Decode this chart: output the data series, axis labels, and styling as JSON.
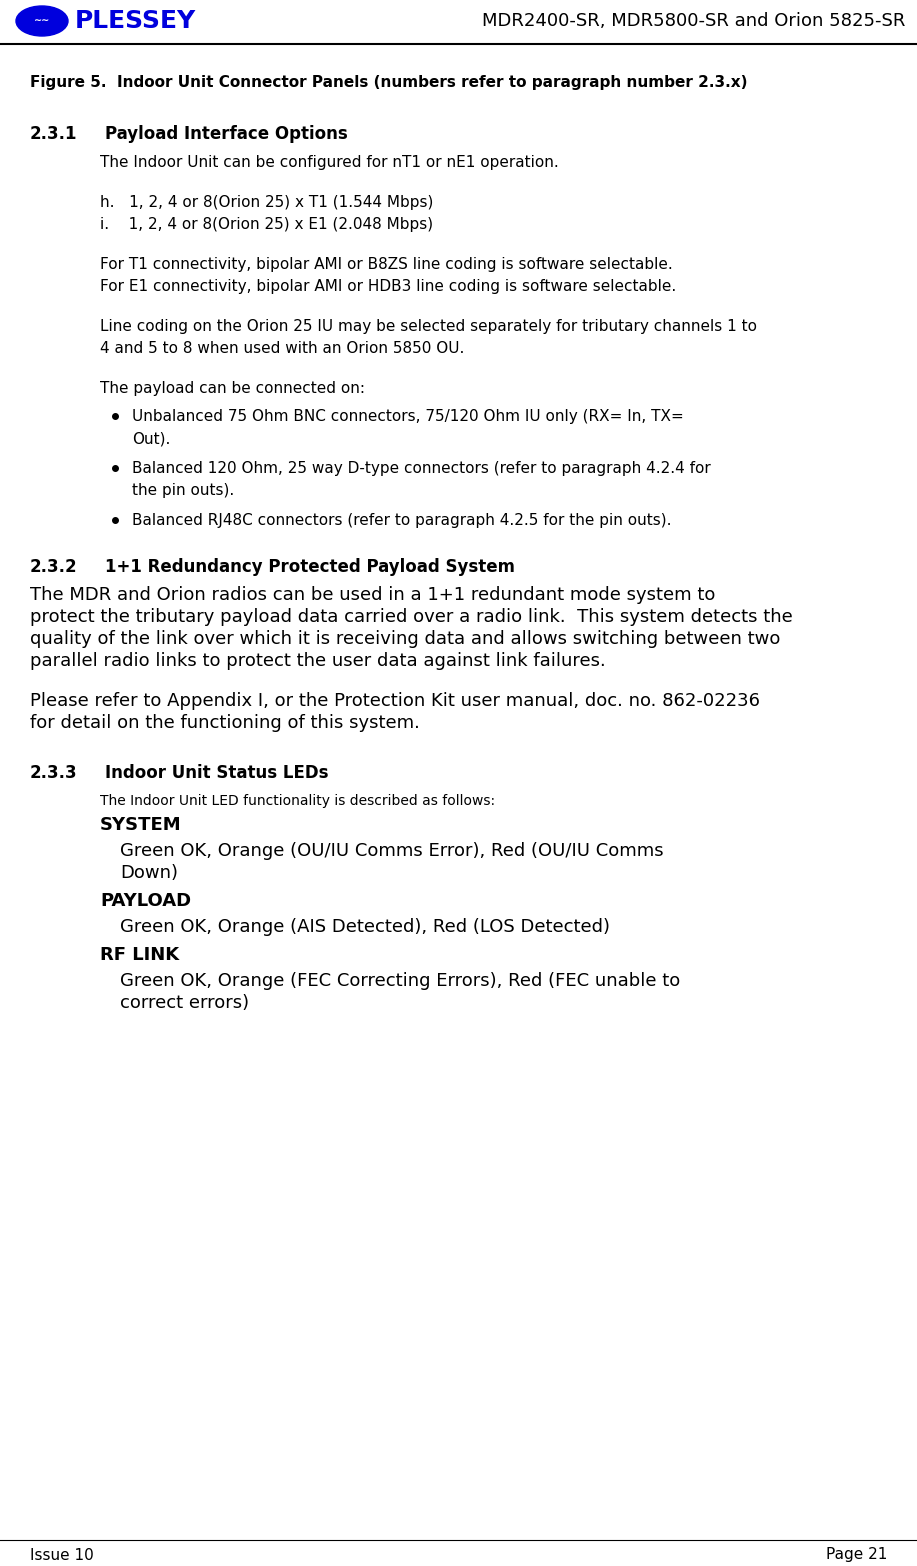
{
  "header_title": "MDR2400-SR, MDR5800-SR and Orion 5825-SR",
  "footer_left": "Issue 10",
  "footer_right": "Page 21",
  "plessey_text": "PLESSEY",
  "figure_caption": "Figure 5.  Indoor Unit Connector Panels (numbers refer to paragraph number 2.3.x)",
  "section_231_num": "2.3.1",
  "section_231_title": "Payload Interface Options",
  "section_231_body1": "The Indoor Unit can be configured for nT1 or nE1 operation.",
  "section_231_h": "h.   1, 2, 4 or 8(Orion 25) x T1 (1.544 Mbps)",
  "section_231_i": "i.    1, 2, 4 or 8(Orion 25) x E1 (2.048 Mbps)",
  "section_231_body2": "For T1 connectivity, bipolar AMI or B8ZS line coding is software selectable.",
  "section_231_body3": "For E1 connectivity, bipolar AMI or HDB3 line coding is software selectable.",
  "section_231_body4a": "Line coding on the Orion 25 IU may be selected separately for tributary channels 1 to",
  "section_231_body4b": "4 and 5 to 8 when used with an Orion 5850 OU.",
  "section_231_body5": "The payload can be connected on:",
  "bullet1a": "Unbalanced 75 Ohm BNC connectors, 75/120 Ohm IU only (RX= In, TX=",
  "bullet1b": "Out).",
  "bullet2a": "Balanced 120 Ohm, 25 way D-type connectors (refer to paragraph 4.2.4 for",
  "bullet2b": "the pin outs).",
  "bullet3": "Balanced RJ48C connectors (refer to paragraph 4.2.5 for the pin outs).",
  "section_232_num": "2.3.2",
  "section_232_title": "1+1 Redundancy Protected Payload System",
  "section_232_p1a": "The MDR and Orion radios can be used in a 1+1 redundant mode system to",
  "section_232_p1b": "protect the tributary payload data carried over a radio link.  This system detects the",
  "section_232_p1c": "quality of the link over which it is receiving data and allows switching between two",
  "section_232_p1d": "parallel radio links to protect the user data against link failures.",
  "section_232_p2a": "Please refer to Appendix I, or the Protection Kit user manual, doc. no. 862-02236",
  "section_232_p2b": "for detail on the functioning of this system.",
  "section_233_num": "2.3.3",
  "section_233_title": "Indoor Unit Status LEDs",
  "section_233_body1": "The Indoor Unit LED functionality is described as follows:",
  "section_233_system_label": "SYSTEM",
  "section_233_system_body1": "Green OK, Orange (OU/IU Comms Error), Red (OU/IU Comms",
  "section_233_system_body2": "Down)",
  "section_233_payload_label": "PAYLOAD",
  "section_233_payload_body": "Green OK, Orange (AIS Detected), Red (LOS Detected)",
  "section_233_rflink_label": "RF LINK",
  "section_233_rflink_body1": "Green OK, Orange (FEC Correcting Errors), Red (FEC unable to",
  "section_233_rflink_body2": "correct errors)",
  "bg_color": "#ffffff",
  "text_color": "#000000",
  "blue_color": "#0000dd"
}
